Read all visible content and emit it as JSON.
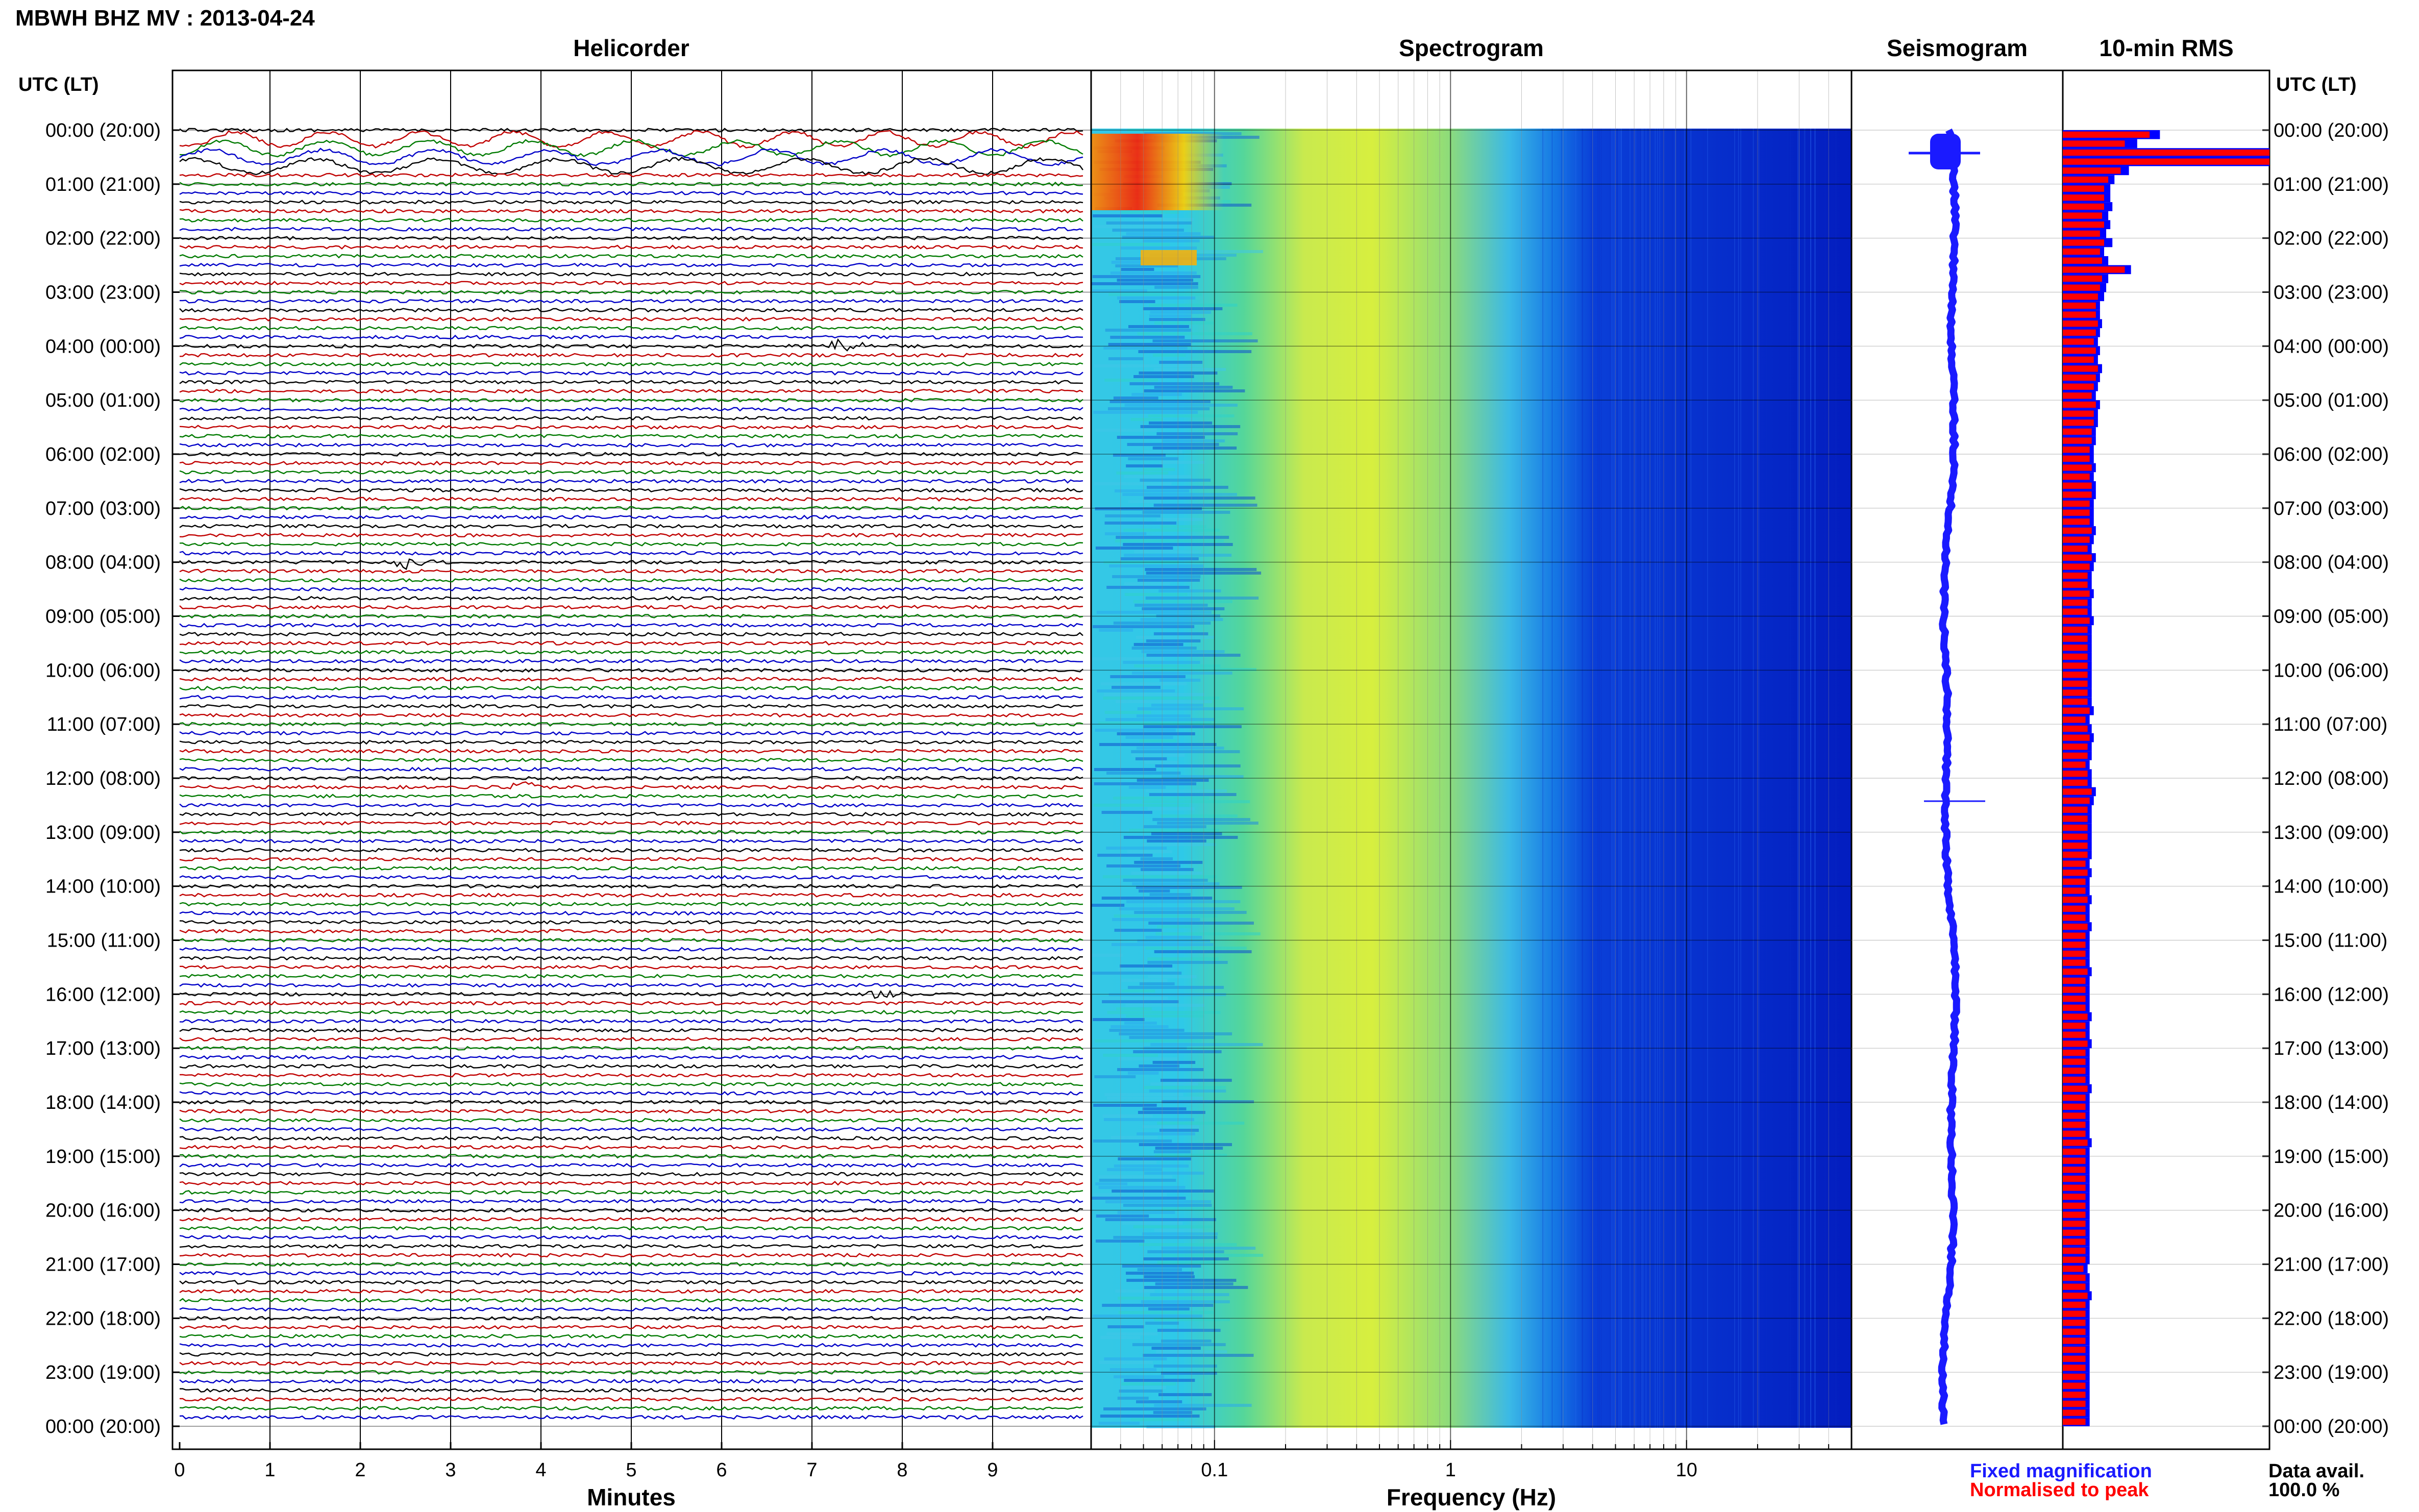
{
  "header": {
    "title": "MBWH BHZ MV : 2013-04-24",
    "axis_time_label_left": "UTC (LT)",
    "axis_time_label_right": "UTC (LT)"
  },
  "colors": {
    "trace_cycle": [
      "#000000",
      "#c00000",
      "#007a00",
      "#0000c8"
    ],
    "seismogram": "#1a1aff",
    "rms_normalised": "#ff0000",
    "rms_fixed": "#0000ff",
    "gridline": "#000000"
  },
  "time_labels": [
    "00:00 (20:00)",
    "01:00 (21:00)",
    "02:00 (22:00)",
    "03:00 (23:00)",
    "04:00 (00:00)",
    "05:00 (01:00)",
    "06:00 (02:00)",
    "07:00 (03:00)",
    "08:00 (04:00)",
    "09:00 (05:00)",
    "10:00 (06:00)",
    "11:00 (07:00)",
    "12:00 (08:00)",
    "13:00 (09:00)",
    "14:00 (10:00)",
    "15:00 (11:00)",
    "16:00 (12:00)",
    "17:00 (13:00)",
    "18:00 (14:00)",
    "19:00 (15:00)",
    "20:00 (16:00)",
    "21:00 (17:00)",
    "22:00 (18:00)",
    "23:00 (19:00)",
    "00:00 (20:00)"
  ],
  "panels": {
    "helicorder": {
      "title": "Helicorder",
      "xlabel": "Minutes",
      "ticks": [
        "0",
        "1",
        "2",
        "3",
        "4",
        "5",
        "6",
        "7",
        "8",
        "9"
      ]
    },
    "spectrogram": {
      "title": "Spectrogram",
      "xlabel": "Frequency (Hz)",
      "ticks": [
        "0.1",
        "1",
        "10"
      ],
      "scale": "log"
    },
    "seismogram": {
      "title": "Seismogram"
    },
    "rms": {
      "title": "10-min RMS"
    }
  },
  "legend": {
    "fixed": "Fixed magnification",
    "normalised": "Normalised to peak"
  },
  "availability": {
    "label": "Data avail.",
    "value": "100.0 %"
  },
  "chart_data": {
    "type": "multi-panel",
    "time_range_utc": [
      "2013-04-24 00:00",
      "2013-04-25 00:00"
    ],
    "helicorder": {
      "x_unit": "minutes",
      "xlim": [
        0,
        10
      ],
      "lines": 144,
      "events": [
        {
          "utc": "00:10-00:40",
          "description": "large long-period oscillations"
        },
        {
          "utc": "04:00",
          "minute": 7.3
        },
        {
          "utc": "08:00",
          "minute": 2.5
        },
        {
          "utc": "12:10",
          "minute": 3.8
        },
        {
          "utc": "16:00",
          "minute": 7.7
        }
      ]
    },
    "spectrogram": {
      "x_unit": "Hz",
      "xlim": [
        0.03,
        50
      ],
      "scale": "log",
      "colormap": "jet",
      "energy_peak_hz": 0.05,
      "high_energy_interval_utc": [
        "00:00",
        "02:20"
      ]
    },
    "rms": {
      "bin_minutes": 10,
      "normalised": [
        0.42,
        0.3,
        1.0,
        1.0,
        0.28,
        0.22,
        0.2,
        0.2,
        0.2,
        0.19,
        0.2,
        0.18,
        0.2,
        0.18,
        0.19,
        0.3,
        0.19,
        0.18,
        0.17,
        0.16,
        0.16,
        0.17,
        0.16,
        0.15,
        0.16,
        0.15,
        0.17,
        0.16,
        0.15,
        0.14,
        0.16,
        0.15,
        0.15,
        0.14,
        0.14,
        0.13,
        0.13,
        0.14,
        0.13,
        0.14,
        0.14,
        0.13,
        0.13,
        0.13,
        0.14,
        0.13,
        0.12,
        0.14,
        0.13,
        0.12,
        0.12,
        0.13,
        0.12,
        0.12,
        0.13,
        0.12,
        0.12,
        0.12,
        0.12,
        0.12,
        0.12,
        0.12,
        0.12,
        0.12,
        0.13,
        0.11,
        0.12,
        0.13,
        0.12,
        0.12,
        0.11,
        0.12,
        0.12,
        0.14,
        0.13,
        0.12,
        0.12,
        0.12,
        0.12,
        0.12,
        0.12,
        0.11,
        0.12,
        0.11,
        0.11,
        0.12,
        0.11,
        0.11,
        0.12,
        0.11,
        0.11,
        0.11,
        0.11,
        0.12,
        0.11,
        0.11,
        0.11,
        0.11,
        0.12,
        0.11,
        0.11,
        0.12,
        0.11,
        0.11,
        0.11,
        0.11,
        0.12,
        0.11,
        0.11,
        0.11,
        0.11,
        0.11,
        0.12,
        0.11,
        0.11,
        0.11,
        0.11,
        0.11,
        0.11,
        0.11,
        0.11,
        0.11,
        0.11,
        0.11,
        0.11,
        0.11,
        0.1,
        0.11,
        0.11,
        0.12,
        0.11,
        0.11,
        0.11,
        0.11,
        0.11,
        0.11,
        0.11,
        0.11,
        0.11,
        0.11,
        0.11,
        0.11,
        0.11,
        0.11
      ],
      "fixed_extra": [
        0.05,
        0.06,
        0.0,
        0.0,
        0.04,
        0.03,
        0.03,
        0.03,
        0.04,
        0.03,
        0.03,
        0.03,
        0.04,
        0.02,
        0.03,
        0.03,
        0.03,
        0.03,
        0.03,
        0.02,
        0.02,
        0.02,
        0.02,
        0.02,
        0.02,
        0.02,
        0.02,
        0.02,
        0.02,
        0.02,
        0.02,
        0.02,
        0.02,
        0.02,
        0.02,
        0.02,
        0.02,
        0.02,
        0.02,
        0.02,
        0.02,
        0.02,
        0.02,
        0.02,
        0.02,
        0.02,
        0.02,
        0.02,
        0.02,
        0.02,
        0.02,
        0.02,
        0.02,
        0.02,
        0.02,
        0.02,
        0.02,
        0.02,
        0.02,
        0.02,
        0.02,
        0.02,
        0.02,
        0.02,
        0.02,
        0.02,
        0.02,
        0.02,
        0.02,
        0.02,
        0.02,
        0.02,
        0.02,
        0.02,
        0.02,
        0.02,
        0.02,
        0.02,
        0.02,
        0.02,
        0.02,
        0.02,
        0.02,
        0.02,
        0.02,
        0.02,
        0.02,
        0.02,
        0.02,
        0.02,
        0.02,
        0.02,
        0.02,
        0.02,
        0.02,
        0.02,
        0.02,
        0.02,
        0.02,
        0.02,
        0.02,
        0.02,
        0.02,
        0.02,
        0.02,
        0.02,
        0.02,
        0.02,
        0.02,
        0.02,
        0.02,
        0.02,
        0.02,
        0.02,
        0.02,
        0.02,
        0.02,
        0.02,
        0.02,
        0.02,
        0.02,
        0.02,
        0.02,
        0.02,
        0.02,
        0.02,
        0.02,
        0.02,
        0.02,
        0.02,
        0.02,
        0.02,
        0.02,
        0.02,
        0.02,
        0.02,
        0.02,
        0.02,
        0.02,
        0.02,
        0.02,
        0.02,
        0.02,
        0.02
      ]
    }
  }
}
